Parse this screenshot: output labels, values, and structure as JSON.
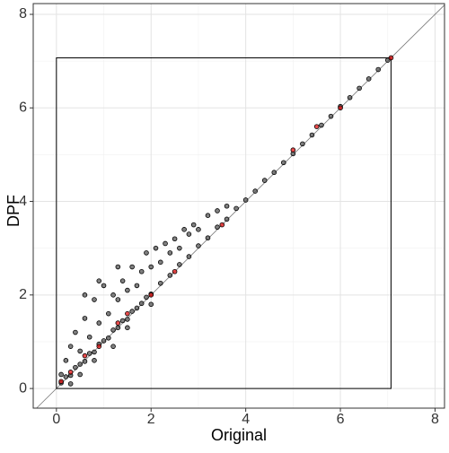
{
  "chart_data": {
    "type": "scatter",
    "x_label": "Original",
    "y_label": "DPF",
    "xlim": [
      -0.49,
      8.2
    ],
    "ylim": [
      -0.42,
      8.23
    ],
    "xticks": [
      0,
      2,
      4,
      6,
      8
    ],
    "yticks": [
      0,
      2,
      4,
      6,
      8
    ],
    "xminorticks": [
      1,
      3,
      5,
      7
    ],
    "yminorticks": [
      1,
      3,
      5,
      7
    ],
    "grid": true,
    "box_lim": [
      0,
      7.07
    ],
    "series": [
      {
        "color": "#555555",
        "x": [
          0.1,
          0.2,
          0.3,
          0.4,
          0.5,
          0.6,
          0.7,
          0.8,
          0.9,
          1.0,
          1.1,
          1.2,
          1.3,
          1.4,
          1.5,
          1.6,
          1.7,
          1.8,
          1.9,
          2.0,
          2.2,
          2.4,
          2.6,
          2.8,
          3.0,
          3.2,
          3.4,
          3.6,
          3.8,
          4.0,
          4.2,
          4.4,
          4.6,
          4.8,
          5.0,
          5.2,
          5.4,
          5.6,
          5.8,
          6.0,
          6.2,
          6.4,
          6.6,
          6.8,
          7.0,
          0.2,
          0.3,
          0.4,
          0.5,
          0.6,
          0.7,
          0.8,
          0.9,
          1.0,
          1.1,
          1.2,
          1.3,
          1.4,
          1.5,
          1.6,
          1.7,
          1.8,
          1.9,
          2.0,
          2.1,
          2.2,
          2.3,
          2.4,
          2.5,
          2.6,
          2.7,
          2.8,
          2.9,
          3.0,
          3.2,
          3.4,
          3.6,
          0.5,
          0.8,
          1.2,
          1.5,
          2.0,
          0.3,
          0.1,
          0.6,
          0.9,
          1.3
        ],
        "values": [
          0.12,
          0.25,
          0.28,
          0.45,
          0.52,
          0.58,
          0.75,
          0.78,
          0.95,
          1.02,
          1.08,
          1.25,
          1.3,
          1.45,
          1.48,
          1.65,
          1.72,
          1.82,
          1.95,
          2.02,
          2.25,
          2.42,
          2.65,
          2.82,
          3.05,
          3.22,
          3.45,
          3.62,
          3.85,
          4.03,
          4.22,
          4.45,
          4.62,
          4.83,
          5.02,
          5.23,
          5.42,
          5.63,
          5.82,
          6.03,
          6.22,
          6.42,
          6.62,
          6.82,
          7.02,
          0.6,
          0.9,
          1.2,
          0.8,
          1.5,
          1.1,
          1.9,
          1.4,
          2.2,
          1.6,
          2.0,
          1.9,
          2.3,
          2.1,
          2.6,
          2.2,
          2.5,
          2.9,
          2.6,
          3.0,
          2.7,
          3.1,
          2.9,
          3.2,
          3.0,
          3.4,
          3.3,
          3.5,
          3.4,
          3.7,
          3.8,
          3.9,
          0.3,
          0.6,
          0.9,
          1.3,
          1.8,
          0.1,
          0.3,
          2.0,
          2.3,
          2.6
        ]
      },
      {
        "color": "#e01010",
        "x": [
          0.1,
          0.3,
          0.6,
          0.9,
          1.3,
          1.5,
          2.0,
          2.5,
          3.5,
          5.0,
          5.5,
          6.0,
          7.07
        ],
        "values": [
          0.15,
          0.35,
          0.7,
          0.9,
          1.4,
          1.6,
          2.0,
          2.5,
          3.5,
          5.1,
          5.6,
          6.0,
          7.07
        ]
      }
    ]
  }
}
